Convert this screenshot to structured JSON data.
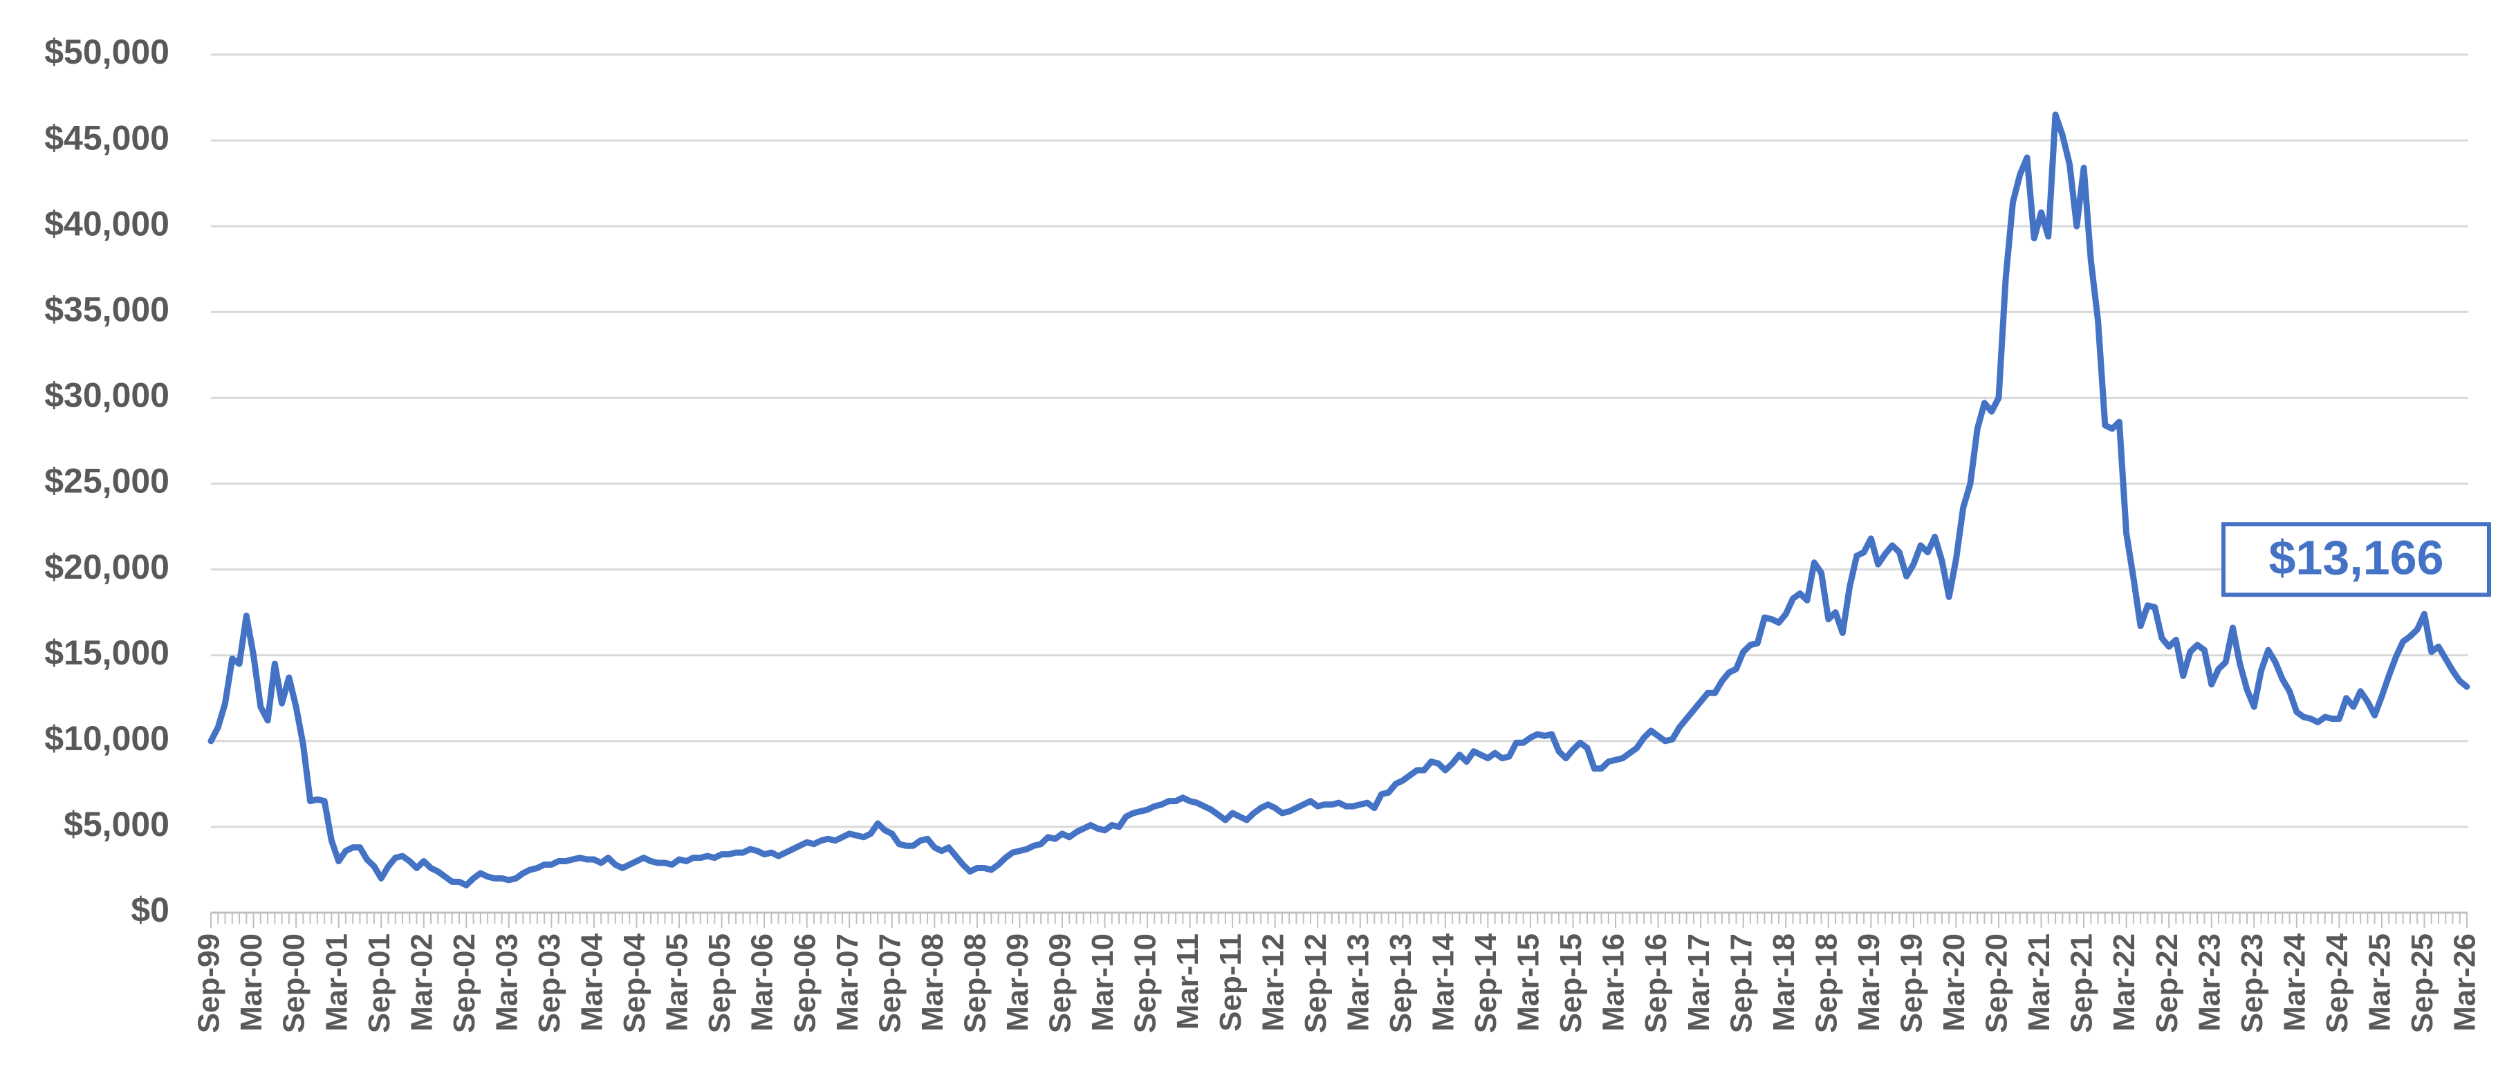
{
  "chart_data": {
    "type": "line",
    "color": "#4472C4",
    "grid": true,
    "ylim": [
      0,
      50000
    ],
    "yticks": [
      {
        "value": 0,
        "label": "$0"
      },
      {
        "value": 5000,
        "label": "$5,000"
      },
      {
        "value": 10000,
        "label": "$10,000"
      },
      {
        "value": 15000,
        "label": "$15,000"
      },
      {
        "value": 20000,
        "label": "$20,000"
      },
      {
        "value": 25000,
        "label": "$25,000"
      },
      {
        "value": 30000,
        "label": "$30,000"
      },
      {
        "value": 35000,
        "label": "$35,000"
      },
      {
        "value": 40000,
        "label": "$40,000"
      },
      {
        "value": 45000,
        "label": "$45,000"
      },
      {
        "value": 50000,
        "label": "$50,000"
      }
    ],
    "categories": [
      "Sep-99",
      null,
      null,
      null,
      null,
      null,
      "Mar-00",
      null,
      null,
      null,
      null,
      null,
      "Sep-00",
      null,
      null,
      null,
      null,
      null,
      "Mar-01",
      null,
      null,
      null,
      null,
      null,
      "Sep-01",
      null,
      null,
      null,
      null,
      null,
      "Mar-02",
      null,
      null,
      null,
      null,
      null,
      "Sep-02",
      null,
      null,
      null,
      null,
      null,
      "Mar-03",
      null,
      null,
      null,
      null,
      null,
      "Sep-03",
      null,
      null,
      null,
      null,
      null,
      "Mar-04",
      null,
      null,
      null,
      null,
      null,
      "Sep-04",
      null,
      null,
      null,
      null,
      null,
      "Mar-05",
      null,
      null,
      null,
      null,
      null,
      "Sep-05",
      null,
      null,
      null,
      null,
      null,
      "Mar-06",
      null,
      null,
      null,
      null,
      null,
      "Sep-06",
      null,
      null,
      null,
      null,
      null,
      "Mar-07",
      null,
      null,
      null,
      null,
      null,
      "Sep-07",
      null,
      null,
      null,
      null,
      null,
      "Mar-08",
      null,
      null,
      null,
      null,
      null,
      "Sep-08",
      null,
      null,
      null,
      null,
      null,
      "Mar-09",
      null,
      null,
      null,
      null,
      null,
      "Sep-09",
      null,
      null,
      null,
      null,
      null,
      "Mar-10",
      null,
      null,
      null,
      null,
      null,
      "Sep-10",
      null,
      null,
      null,
      null,
      null,
      "Mar-11",
      null,
      null,
      null,
      null,
      null,
      "Sep-11",
      null,
      null,
      null,
      null,
      null,
      "Mar-12",
      null,
      null,
      null,
      null,
      null,
      "Sep-12",
      null,
      null,
      null,
      null,
      null,
      "Mar-13",
      null,
      null,
      null,
      null,
      null,
      "Sep-13",
      null,
      null,
      null,
      null,
      null,
      "Mar-14",
      null,
      null,
      null,
      null,
      null,
      "Sep-14",
      null,
      null,
      null,
      null,
      null,
      "Mar-15",
      null,
      null,
      null,
      null,
      null,
      "Sep-15",
      null,
      null,
      null,
      null,
      null,
      "Mar-16",
      null,
      null,
      null,
      null,
      null,
      "Sep-16",
      null,
      null,
      null,
      null,
      null,
      "Mar-17",
      null,
      null,
      null,
      null,
      null,
      "Sep-17",
      null,
      null,
      null,
      null,
      null,
      "Mar-18",
      null,
      null,
      null,
      null,
      null,
      "Sep-18",
      null,
      null,
      null,
      null,
      null,
      "Mar-19",
      null,
      null,
      null,
      null,
      null,
      "Sep-19",
      null,
      null,
      null,
      null,
      null,
      "Mar-20",
      null,
      null,
      null,
      null,
      null,
      "Sep-20",
      null,
      null,
      null,
      null,
      null,
      "Mar-21",
      null,
      null,
      null,
      null,
      null,
      "Sep-21",
      null,
      null,
      null,
      null,
      null,
      "Mar-22",
      null,
      null,
      null,
      null,
      null,
      "Sep-22",
      null,
      null,
      null,
      null,
      null,
      "Mar-23",
      null,
      null,
      null,
      null,
      null,
      "Sep-23",
      null,
      null,
      null,
      null,
      null,
      "Mar-24",
      null,
      null,
      null,
      null,
      null,
      "Sep-24",
      null,
      null,
      null,
      null,
      null,
      "Mar-25",
      null,
      null,
      null,
      null,
      null,
      "Sep-25",
      null,
      null,
      null,
      null,
      null,
      "Mar-26"
    ],
    "values": [
      10000,
      10800,
      12200,
      14800,
      14500,
      17300,
      15000,
      12000,
      11200,
      14500,
      12200,
      13700,
      12000,
      9800,
      6500,
      6600,
      6500,
      4200,
      3000,
      3600,
      3800,
      3800,
      3100,
      2700,
      2000,
      2700,
      3200,
      3300,
      3000,
      2600,
      3000,
      2600,
      2400,
      2100,
      1800,
      1800,
      1600,
      2000,
      2300,
      2100,
      2000,
      2000,
      1900,
      2000,
      2300,
      2500,
      2600,
      2800,
      2800,
      3000,
      3000,
      3100,
      3200,
      3100,
      3100,
      2900,
      3200,
      2800,
      2600,
      2800,
      3000,
      3200,
      3000,
      2900,
      2900,
      2800,
      3100,
      3000,
      3200,
      3200,
      3300,
      3200,
      3400,
      3400,
      3500,
      3500,
      3700,
      3600,
      3400,
      3500,
      3300,
      3500,
      3700,
      3900,
      4100,
      4000,
      4200,
      4300,
      4200,
      4400,
      4600,
      4500,
      4400,
      4600,
      5200,
      4800,
      4600,
      4000,
      3900,
      3900,
      4200,
      4300,
      3800,
      3600,
      3800,
      3300,
      2800,
      2400,
      2600,
      2600,
      2500,
      2800,
      3200,
      3500,
      3600,
      3700,
      3900,
      4000,
      4400,
      4300,
      4600,
      4400,
      4700,
      4900,
      5100,
      4900,
      4800,
      5100,
      5000,
      5600,
      5800,
      5900,
      6000,
      6200,
      6300,
      6500,
      6500,
      6700,
      6500,
      6400,
      6200,
      6000,
      5700,
      5400,
      5800,
      5600,
      5400,
      5800,
      6100,
      6300,
      6100,
      5800,
      5900,
      6100,
      6300,
      6500,
      6200,
      6300,
      6300,
      6400,
      6200,
      6200,
      6300,
      6400,
      6100,
      6900,
      7000,
      7500,
      7700,
      8000,
      8300,
      8300,
      8800,
      8700,
      8300,
      8700,
      9200,
      8800,
      9400,
      9200,
      9000,
      9300,
      9000,
      9100,
      9900,
      9900,
      10200,
      10400,
      10300,
      10400,
      9400,
      9000,
      9500,
      9900,
      9600,
      8400,
      8400,
      8800,
      8900,
      9000,
      9300,
      9600,
      10200,
      10600,
      10300,
      10000,
      10100,
      10800,
      11300,
      11800,
      12300,
      12800,
      12800,
      13500,
      14000,
      14200,
      15200,
      15600,
      15700,
      17200,
      17100,
      16900,
      17400,
      18300,
      18600,
      18200,
      20400,
      19800,
      17100,
      17500,
      16300,
      19000,
      20800,
      21000,
      21800,
      20300,
      20900,
      21400,
      21000,
      19600,
      20300,
      21400,
      21000,
      21900,
      20500,
      18400,
      20600,
      23600,
      25000,
      28200,
      29700,
      29200,
      30000,
      37000,
      41400,
      43000,
      44000,
      39300,
      40800,
      39400,
      46500,
      45300,
      43600,
      40000,
      43400,
      38000,
      34500,
      28400,
      28200,
      28600,
      22100,
      19500,
      16700,
      17900,
      17800,
      16000,
      15500,
      15900,
      13800,
      15200,
      15600,
      15300,
      13300,
      14200,
      14600,
      16600,
      14500,
      13000,
      12000,
      14100,
      15300,
      14600,
      13600,
      12900,
      11700,
      11400,
      11300,
      11100,
      11400,
      11300,
      11300,
      12500,
      12000,
      12900,
      12300,
      11500,
      12600,
      13800,
      14900,
      15800,
      16100,
      16500,
      17400,
      15200,
      15500,
      14800,
      14100,
      13500,
      13166
    ],
    "value_labels": [
      null,
      null,
      null,
      null,
      null,
      null,
      null,
      null,
      null,
      null,
      null,
      null,
      null,
      null,
      null,
      null,
      null,
      null,
      null,
      null,
      null,
      null,
      null,
      null,
      null,
      null,
      null,
      null,
      null,
      null,
      null,
      null,
      null,
      null,
      null,
      null,
      null,
      null,
      null,
      null,
      null,
      null,
      null,
      null,
      null,
      null,
      null,
      null,
      null,
      null,
      null,
      null,
      null,
      null,
      null,
      null,
      null,
      null,
      null,
      null,
      null,
      null,
      null,
      null,
      null,
      null,
      null,
      null,
      null,
      null,
      null,
      null,
      null,
      null,
      null,
      null,
      null,
      null,
      null,
      null,
      null,
      null,
      null,
      null,
      null,
      null,
      null,
      null,
      null,
      null,
      null,
      null,
      null,
      null,
      null,
      null,
      null,
      null,
      null,
      null,
      null,
      null,
      null,
      null,
      null,
      null,
      null,
      null,
      null,
      null,
      null,
      null,
      null,
      null,
      null,
      null,
      null,
      null,
      null,
      null,
      null,
      null,
      null,
      null,
      null,
      null,
      null,
      null,
      null,
      null,
      null,
      null,
      null,
      null,
      null,
      null,
      null,
      null,
      null,
      null,
      null,
      null,
      null,
      null,
      null,
      null,
      null,
      null,
      null,
      null,
      null,
      null,
      null,
      null,
      null,
      null,
      null,
      null,
      null,
      null,
      null,
      null,
      null,
      null,
      null,
      null,
      null,
      null,
      null,
      null,
      null,
      null,
      null,
      null,
      null,
      null,
      null,
      null,
      null,
      null,
      null,
      null,
      null,
      null,
      null,
      null,
      null,
      null,
      null,
      null,
      null,
      null,
      null,
      null,
      null,
      null,
      null,
      null,
      null,
      null,
      null,
      null,
      null,
      null,
      null,
      null,
      null,
      null,
      null,
      null,
      null,
      null,
      null,
      null,
      null,
      null,
      null,
      null,
      null,
      null,
      null,
      null,
      null,
      null,
      null,
      null,
      null,
      null,
      null,
      null,
      null,
      null,
      null,
      null,
      null,
      null,
      null,
      null,
      null,
      null,
      null,
      null,
      null,
      null,
      null,
      null,
      null,
      null,
      null,
      null,
      null,
      null,
      null,
      null,
      null,
      null,
      null,
      null,
      null,
      null,
      null,
      null,
      null,
      null,
      null,
      null,
      null,
      null,
      null,
      null,
      null,
      null,
      null,
      null,
      null,
      null,
      null,
      null,
      null,
      null,
      null,
      null,
      null,
      null,
      null,
      null,
      null,
      null,
      null,
      null,
      null,
      null,
      null,
      null,
      null,
      null,
      null,
      null,
      null,
      null,
      null,
      null,
      null,
      null,
      null,
      null,
      null,
      null,
      null,
      null,
      null,
      null,
      null,
      null,
      null,
      null,
      null,
      null,
      "$13,166"
    ]
  }
}
